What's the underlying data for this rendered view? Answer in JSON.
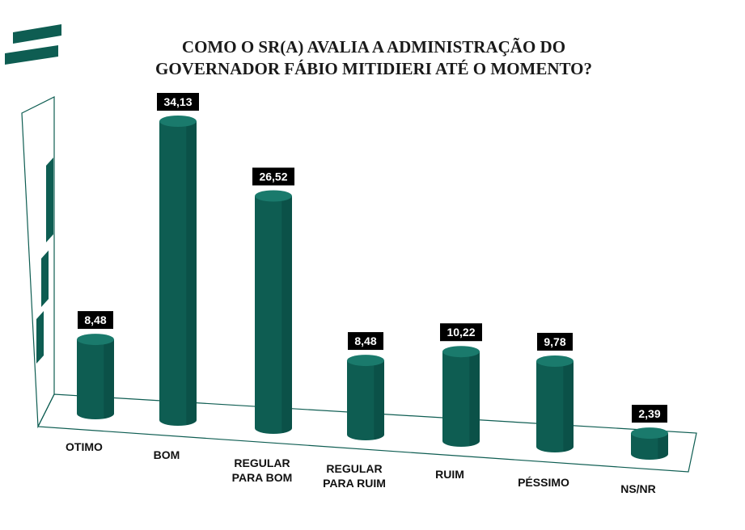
{
  "title_lines": [
    "COMO O SR(A) AVALIA A ADMINISTRAÇÃO DO",
    "GOVERNADOR FÁBIO MITIDIERI ATÉ O MOMENTO?"
  ],
  "logo_icon": "stripes-logo-icon",
  "colors": {
    "bar": "#0e5d52",
    "bar_top": "#1a7a6c",
    "bar_shade": "#0a473f",
    "label_box": "#000000",
    "logo": "#0e5d52",
    "frame": "#0e5d52"
  },
  "chart_data": {
    "type": "bar",
    "categories": [
      [
        "OTIMO"
      ],
      [
        "BOM"
      ],
      [
        "REGULAR",
        "PARA BOM"
      ],
      [
        "REGULAR",
        "PARA RUIM"
      ],
      [
        "RUIM"
      ],
      [
        "PÉSSIMO"
      ],
      [
        "NS/NR"
      ]
    ],
    "values": [
      8.48,
      34.13,
      26.52,
      8.48,
      10.22,
      9.78,
      2.39
    ],
    "data_labels": [
      "8,48",
      "34,13",
      "26,52",
      "8,48",
      "10,22",
      "9,78",
      "2,39"
    ],
    "ylim": [
      0,
      40
    ],
    "grid": false,
    "legend": "none",
    "style": "3d-cylinder"
  }
}
